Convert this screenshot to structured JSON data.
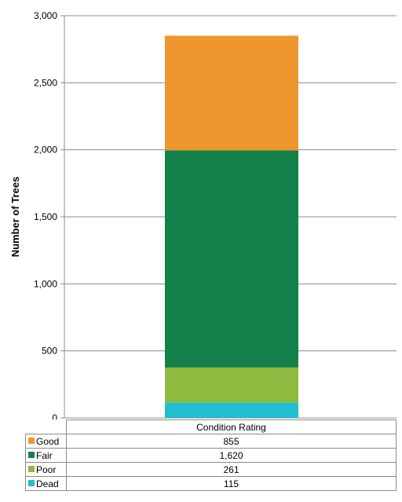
{
  "chart_data": {
    "type": "bar",
    "stacked": true,
    "categories": [
      "Condition Rating"
    ],
    "series": [
      {
        "name": "Dead",
        "values": [
          115
        ],
        "color": "#1fbfcf"
      },
      {
        "name": "Poor",
        "values": [
          261
        ],
        "color": "#8fba3f"
      },
      {
        "name": "Fair",
        "values": [
          1620
        ],
        "color": "#138149"
      },
      {
        "name": "Good",
        "values": [
          855
        ],
        "color": "#f0962f"
      }
    ],
    "ylabel": "Number of Trees",
    "ylim": [
      0,
      3000
    ],
    "yticks": [
      0,
      500,
      1000,
      1500,
      2000,
      2500,
      3000
    ],
    "ytick_labels": [
      "0",
      "500",
      "1,000",
      "1,500",
      "2,000",
      "2,500",
      "3,000"
    ],
    "grid": true,
    "legend": "data-table-below"
  },
  "table": {
    "header": "Condition Rating",
    "rows": [
      {
        "label": "Good",
        "value": "855",
        "color": "#f0962f"
      },
      {
        "label": "Fair",
        "value": "1,620",
        "color": "#138149"
      },
      {
        "label": "Poor",
        "value": "261",
        "color": "#8fba3f"
      },
      {
        "label": "Dead",
        "value": "115",
        "color": "#1fbfcf"
      }
    ]
  }
}
